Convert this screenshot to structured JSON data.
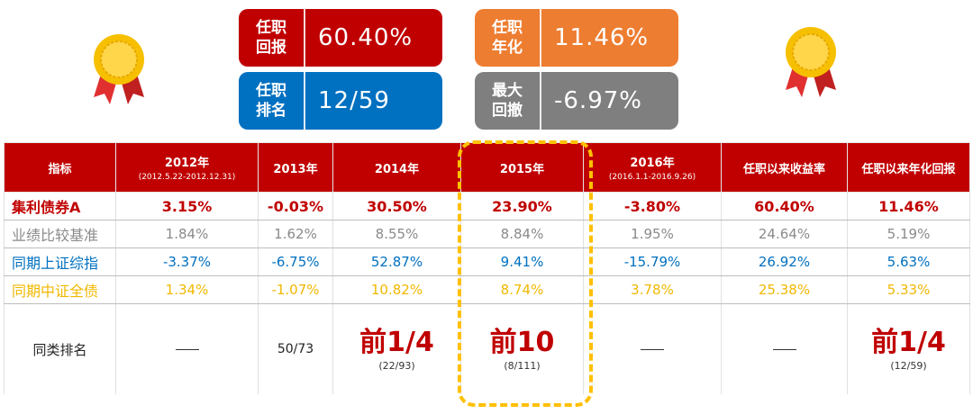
{
  "cards": {
    "tenure_return": {
      "label": "任职\n回报",
      "value": "60.40%",
      "color": "#c00000"
    },
    "tenure_rank": {
      "label": "任职\n排名",
      "value": "12/59",
      "color": "#0070c0"
    },
    "annualized": {
      "label": "任职\n年化",
      "value": "11.46%",
      "color": "#ed7d31"
    },
    "max_drawdown": {
      "label": "最大\n回撤",
      "value": "-6.97%",
      "color": "#7f7f7f"
    }
  },
  "medals": [
    "medal-icon",
    "medal-icon"
  ],
  "table": {
    "headers": [
      {
        "title": "指标",
        "sub": ""
      },
      {
        "title": "2012年",
        "sub": "(2012.5.22-2012.12.31)"
      },
      {
        "title": "2013年",
        "sub": ""
      },
      {
        "title": "2014年",
        "sub": ""
      },
      {
        "title": "2015年",
        "sub": ""
      },
      {
        "title": "2016年",
        "sub": "(2016.1.1-2016.9.26)"
      },
      {
        "title": "任职以来收益率",
        "sub": ""
      },
      {
        "title": "任职以来年化回报",
        "sub": ""
      }
    ],
    "rows": [
      {
        "name": "集利债券A",
        "values": [
          "3.15%",
          "-0.03%",
          "30.50%",
          "23.90%",
          "-3.80%",
          "60.40%",
          "11.46%"
        ]
      },
      {
        "name": "业绩比较基准",
        "values": [
          "1.84%",
          "1.62%",
          "8.55%",
          "8.84%",
          "1.95%",
          "24.64%",
          "5.19%"
        ]
      },
      {
        "name": "同期上证综指",
        "values": [
          "-3.37%",
          "-6.75%",
          "52.87%",
          "9.41%",
          "-15.79%",
          "26.92%",
          "5.63%"
        ]
      },
      {
        "name": "同期中证全债",
        "values": [
          "1.34%",
          "-1.07%",
          "10.82%",
          "8.74%",
          "3.78%",
          "25.38%",
          "5.33%"
        ]
      }
    ],
    "rank_row": {
      "name": "同类排名",
      "cells": [
        {
          "big": "",
          "small": "",
          "text": "",
          "dash": true
        },
        {
          "big": "",
          "small": "",
          "text": "50/73",
          "dash": false
        },
        {
          "big": "前1/4",
          "small": "(22/93)",
          "text": "",
          "dash": false
        },
        {
          "big": "前10",
          "small": "(8/111)",
          "text": "",
          "dash": false
        },
        {
          "big": "",
          "small": "",
          "text": "",
          "dash": true
        },
        {
          "big": "",
          "small": "",
          "text": "",
          "dash": true
        },
        {
          "big": "前1/4",
          "small": "(12/59)",
          "text": "",
          "dash": false
        }
      ]
    }
  },
  "highlight_color": "#ffc000"
}
